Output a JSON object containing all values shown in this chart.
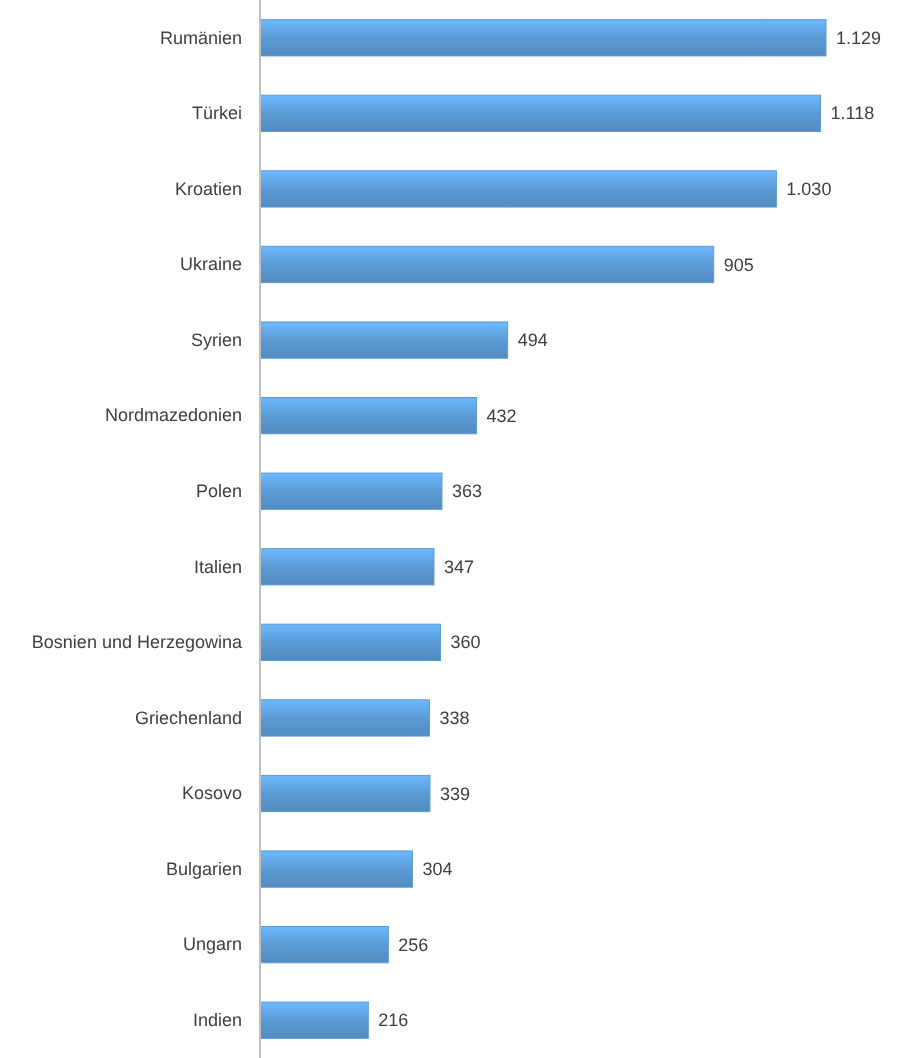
{
  "chart_data": {
    "type": "bar",
    "orientation": "horizontal",
    "categories": [
      "Rumänien",
      "Türkei",
      "Kroatien",
      "Ukraine",
      "Syrien",
      "Nordmazedonien",
      "Polen",
      "Italien",
      "Bosnien und Herzegowina",
      "Griechenland",
      "Kosovo",
      "Bulgarien",
      "Ungarn",
      "Indien"
    ],
    "values": [
      1129,
      1118,
      1030,
      905,
      494,
      432,
      363,
      347,
      360,
      338,
      339,
      304,
      256,
      216
    ],
    "value_labels": [
      "1.129",
      "1.118",
      "1.030",
      "905",
      "494",
      "432",
      "363",
      "347",
      "360",
      "338",
      "339",
      "304",
      "256",
      "216"
    ],
    "color": "#5b9bd5"
  }
}
